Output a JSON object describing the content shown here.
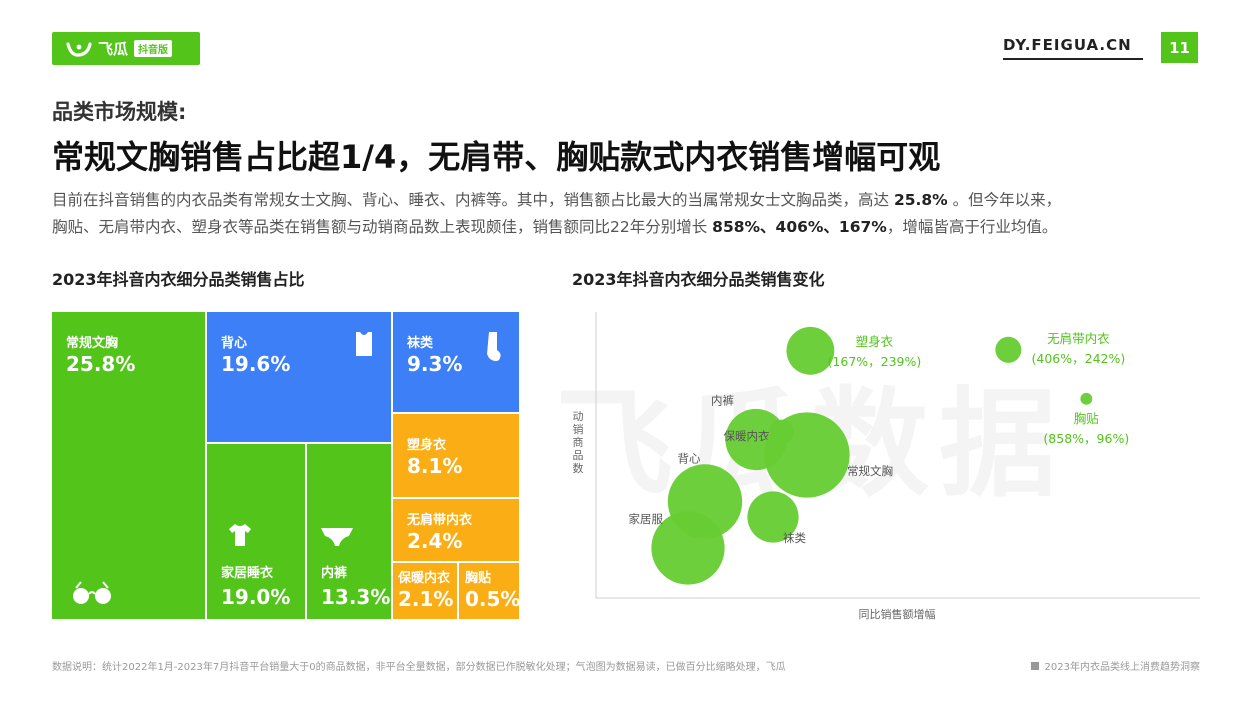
{
  "brand": {
    "name": "飞瓜",
    "badge": "抖音版"
  },
  "site": "DY.FEIGUA.CN",
  "page_number": "11",
  "subtitle": "品类市场规模:",
  "title": "常规文胸销售占比超1/4，无肩带、胸贴款式内衣销售增幅可观",
  "description": {
    "l1a": "目前在抖音销售的内衣品类有常规女士文胸、背心、睡衣、内裤等。其中，销售额占比最大的当属常规女士文胸品类，高达 ",
    "l1b": "25.8%",
    "l1c": " 。但今年以来，",
    "l2a": "胸贴、无肩带内衣、塑身衣等品类在销售额与动销商品数上表现颇佳，销售额同比22年分别增长 ",
    "l2b": "858%、406%、167%",
    "l2c": "，增幅皆高于行业均值。"
  },
  "watermark": "飞瓜数据",
  "chart_data": [
    {
      "type": "treemap",
      "title": "2023年抖音内衣细分品类销售占比",
      "categories": [
        "常规文胸",
        "背心",
        "家居睡衣",
        "内裤",
        "袜类",
        "塑身衣",
        "无肩带内衣",
        "保暖内衣",
        "胸贴"
      ],
      "values": [
        25.8,
        19.6,
        19.0,
        13.3,
        9.3,
        8.1,
        2.4,
        2.1,
        0.5
      ],
      "labels": [
        "25.8%",
        "19.6%",
        "19.0%",
        "13.3%",
        "9.3%",
        "8.1%",
        "2.4%",
        "2.1%",
        "0.5%"
      ],
      "colors": {
        "green": "#52c41a",
        "blue": "#3d7ff7",
        "orange": "#faad14"
      }
    },
    {
      "type": "bubble",
      "title": "2023年抖音内衣细分品类销售变化",
      "xlabel": "同比销售额增幅",
      "ylabel": "动销商品数",
      "color": "#66cc33",
      "highlight_color": "#52c41a",
      "points": [
        {
          "name": "内裤",
          "x": 10,
          "y": 30,
          "size": 13.3
        },
        {
          "name": "保暖内衣",
          "x": 25,
          "y": 35,
          "size": 2.1
        },
        {
          "name": "常规文胸",
          "x": 40,
          "y": 20,
          "size": 25.8
        },
        {
          "name": "背心",
          "x": -20,
          "y": -10,
          "size": 19.6
        },
        {
          "name": "家居服",
          "x": -30,
          "y": -40,
          "size": 19.0
        },
        {
          "name": "袜类",
          "x": 20,
          "y": -20,
          "size": 9.3
        },
        {
          "name": "塑身衣",
          "x": 167,
          "y": 239,
          "size": 8.1,
          "note": "(167%，239%)"
        },
        {
          "name": "无肩带内衣",
          "x": 406,
          "y": 242,
          "size": 2.4,
          "note": "(406%，242%)"
        },
        {
          "name": "胸贴",
          "x": 858,
          "y": 96,
          "size": 0.5,
          "note": "(858%，96%)"
        }
      ]
    }
  ],
  "footer": {
    "note": "数据说明：统计2022年1月-2023年7月抖音平台销量大于0的商品数据，非平台全量数据，部分数据已作脱敏化处理；气泡图为数据易读，已做百分比缩略处理，飞瓜",
    "report": "2023年内衣品类线上消费趋势洞察"
  }
}
